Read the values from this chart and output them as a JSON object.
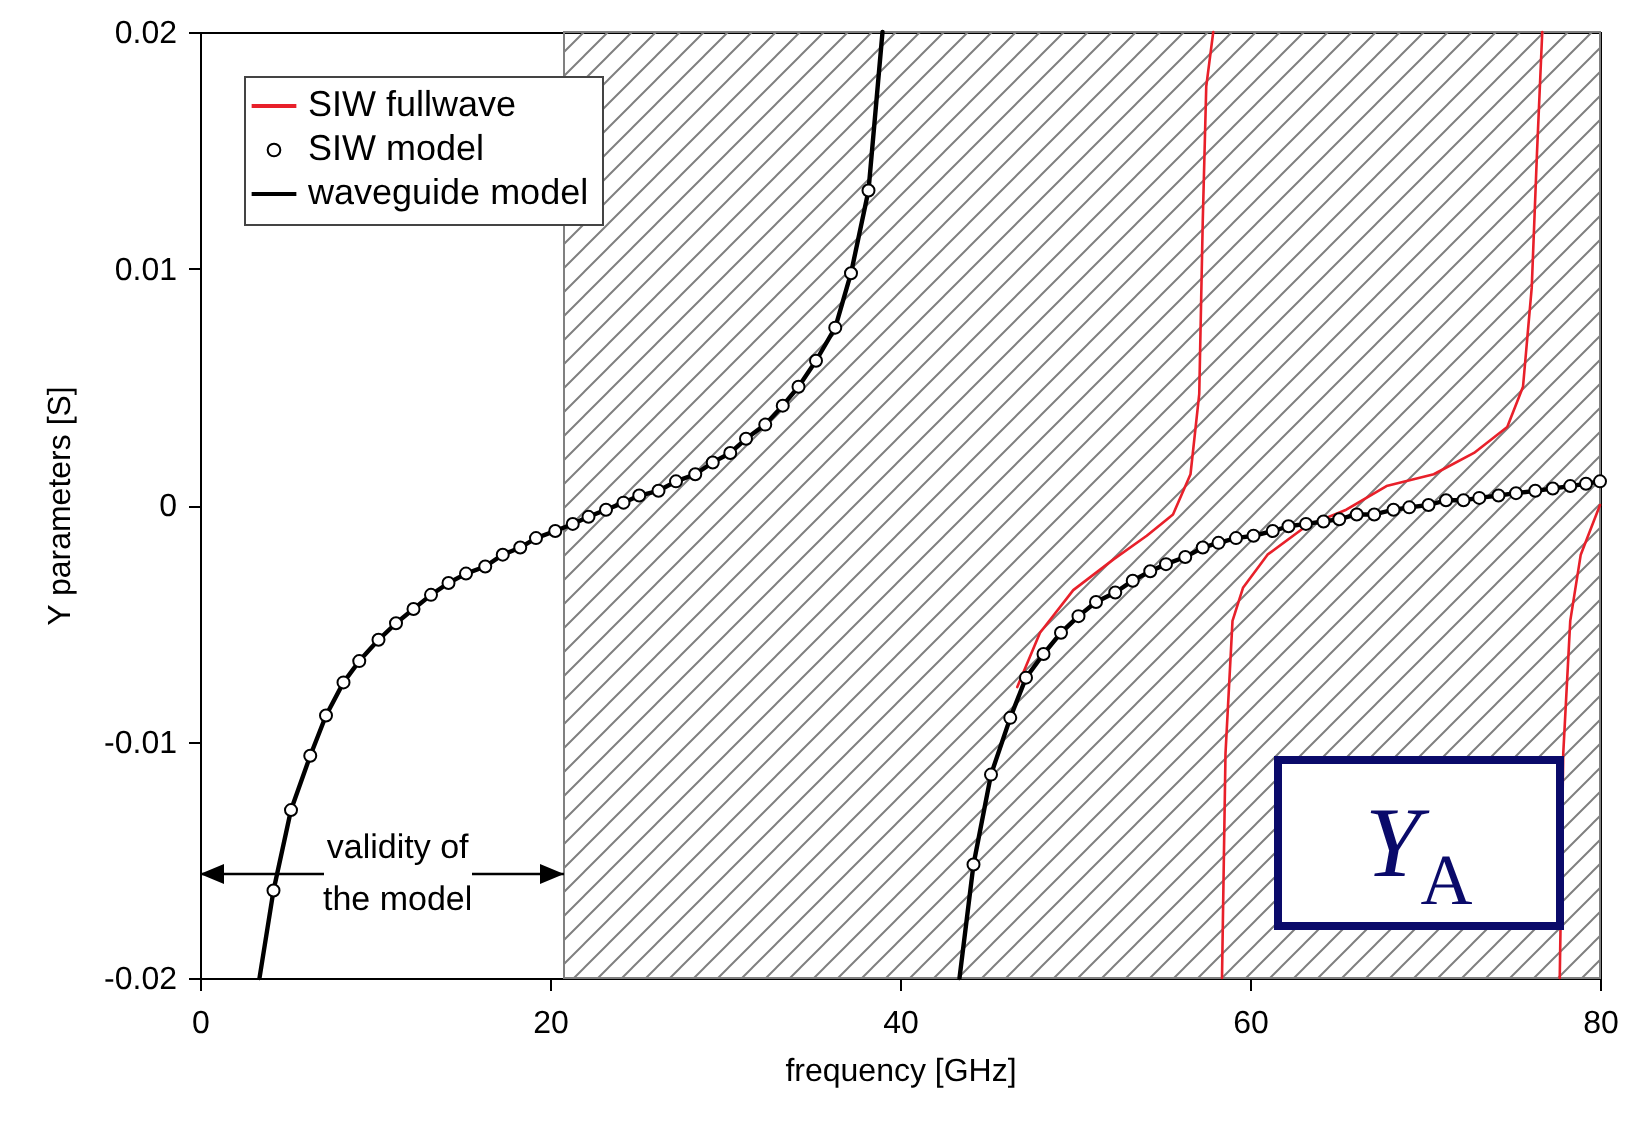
{
  "chart_data": {
    "type": "line",
    "xlabel": "frequency [GHz]",
    "ylabel": "Y parameters [S]",
    "xlim": [
      0,
      80
    ],
    "ylim": [
      -0.02,
      0.02
    ],
    "xticks": [
      0,
      20,
      40,
      60,
      80
    ],
    "yticks": [
      -0.02,
      -0.01,
      0,
      0.01,
      0.02
    ],
    "grid": false,
    "legend": "top left",
    "bands": [
      {
        "axis": "x",
        "from": 20.8,
        "to": 80,
        "label": "validity of\nthe model",
        "color": "#808080"
      }
    ],
    "annotations": [
      "Y$_{A}$"
    ],
    "series": [
      {
        "name": "SIW fullwave",
        "color": "#e8202a",
        "x": [
          46.7,
          48,
          49.9,
          52.2,
          54.1,
          55.6,
          56.6,
          57.1,
          57.3,
          57.5,
          57.9,
          null,
          58.4,
          58.6,
          59.0,
          59.6,
          61.0,
          63.2,
          65.5,
          67.8,
          70.5,
          72.8,
          74.7,
          75.6,
          76.1,
          76.4,
          76.7,
          null,
          77.7,
          77.9,
          78.3,
          78.9,
          80
        ],
        "values": [
          -0.0077,
          -0.0054,
          -0.0036,
          -0.0023,
          -0.0013,
          -0.0004,
          0.0013,
          0.0047,
          0.012,
          0.0177,
          0.02,
          null,
          -0.02,
          -0.0105,
          -0.0049,
          -0.0035,
          -0.0021,
          -0.0009,
          -0.0002,
          0.0008,
          0.0013,
          0.0022,
          0.0033,
          0.005,
          0.0092,
          0.0149,
          0.02,
          null,
          -0.02,
          -0.0105,
          -0.0049,
          -0.0021,
          0.0
        ]
      },
      {
        "name": "SIW model",
        "type": "scatter",
        "marker": "circle",
        "color": "#000000",
        "x": [
          4.2,
          5.2,
          6.3,
          7.2,
          8.2,
          9.1,
          10.2,
          11.2,
          12.2,
          13.2,
          14.2,
          15.2,
          16.3,
          17.3,
          18.3,
          19.2,
          20.3,
          21.3,
          22.2,
          23.2,
          24.2,
          25.1,
          26.2,
          27.2,
          28.3,
          29.3,
          30.3,
          31.2,
          32.3,
          33.3,
          34.2,
          35.2,
          36.3,
          37.2,
          38.2,
          44.2,
          45.2,
          46.3,
          47.2,
          48.2,
          49.2,
          50.2,
          51.2,
          52.3,
          53.3,
          54.3,
          55.2,
          56.3,
          57.3,
          58.2,
          59.2,
          60.2,
          61.3,
          62.2,
          63.2,
          64.2,
          65.1,
          66.1,
          67.1,
          68.2,
          69.1,
          70.2,
          71.2,
          72.2,
          73.1,
          74.2,
          75.2,
          76.3,
          77.3,
          78.3,
          79.2,
          80
        ],
        "values": [
          -0.0163,
          -0.0129,
          -0.0106,
          -0.0089,
          -0.0075,
          -0.0066,
          -0.0057,
          -0.005,
          -0.0044,
          -0.0038,
          -0.0033,
          -0.0029,
          -0.0026,
          -0.0021,
          -0.0018,
          -0.0014,
          -0.0011,
          -0.0008,
          -0.0005,
          -0.0002,
          0.0001,
          0.0004,
          0.0006,
          0.001,
          0.0013,
          0.0018,
          0.0022,
          0.0028,
          0.0034,
          0.0042,
          0.005,
          0.0061,
          0.0075,
          0.0098,
          0.0133,
          -0.0152,
          -0.0114,
          -0.009,
          -0.0073,
          -0.0063,
          -0.0054,
          -0.0047,
          -0.0041,
          -0.0037,
          -0.0032,
          -0.0028,
          -0.0025,
          -0.0022,
          -0.0018,
          -0.0016,
          -0.0014,
          -0.0013,
          -0.0011,
          -0.0009,
          -0.0008,
          -0.0007,
          -0.0006,
          -0.0004,
          -0.0004,
          -0.0002,
          -0.0001,
          0.0,
          0.0002,
          0.0002,
          0.0003,
          0.0004,
          0.0005,
          0.0006,
          0.0007,
          0.0008,
          0.0009,
          0.001
        ]
      },
      {
        "name": "waveguide model",
        "color": "#000000",
        "x": [
          3.4,
          4.2,
          5.2,
          6.3,
          7.2,
          8.2,
          9.1,
          10.2,
          11.2,
          12.2,
          13.2,
          14.2,
          15.2,
          16.3,
          17.3,
          18.3,
          19.2,
          20.3,
          21.3,
          22.2,
          23.2,
          24.2,
          25.1,
          26.2,
          27.2,
          28.3,
          29.3,
          30.3,
          31.2,
          32.3,
          33.3,
          34.2,
          35.2,
          36.3,
          37.2,
          38.2,
          39.0,
          null,
          43.4,
          44.2,
          45.2,
          46.3,
          47.2,
          48.2,
          49.2,
          50.2,
          51.2,
          52.3,
          53.3,
          54.3,
          55.2,
          56.3,
          57.3,
          58.2,
          59.2,
          60.2,
          61.3,
          62.2,
          63.2,
          64.2,
          65.1,
          66.1,
          67.1,
          68.2,
          69.1,
          70.2,
          71.2,
          72.2,
          73.1,
          74.2,
          75.2,
          76.3,
          77.3,
          78.3,
          79.2,
          80
        ],
        "values": [
          -0.02,
          -0.0163,
          -0.0129,
          -0.0106,
          -0.0089,
          -0.0075,
          -0.0066,
          -0.0057,
          -0.005,
          -0.0044,
          -0.0038,
          -0.0033,
          -0.0029,
          -0.0026,
          -0.0021,
          -0.0018,
          -0.0014,
          -0.0011,
          -0.0008,
          -0.0005,
          -0.0002,
          0.0001,
          0.0004,
          0.0006,
          0.001,
          0.0013,
          0.0018,
          0.0022,
          0.0028,
          0.0034,
          0.0042,
          0.005,
          0.0061,
          0.0075,
          0.0098,
          0.0133,
          0.02,
          null,
          -0.02,
          -0.0152,
          -0.0114,
          -0.009,
          -0.0073,
          -0.0063,
          -0.0054,
          -0.0047,
          -0.0041,
          -0.0037,
          -0.0032,
          -0.0028,
          -0.0025,
          -0.0022,
          -0.0018,
          -0.0016,
          -0.0014,
          -0.0013,
          -0.0011,
          -0.0009,
          -0.0008,
          -0.0007,
          -0.0006,
          -0.0004,
          -0.0004,
          -0.0002,
          -0.0001,
          0.0,
          0.0002,
          0.0002,
          0.0003,
          0.0004,
          0.0005,
          0.0006,
          0.0007,
          0.0008,
          0.0009,
          0.001
        ]
      }
    ]
  }
}
